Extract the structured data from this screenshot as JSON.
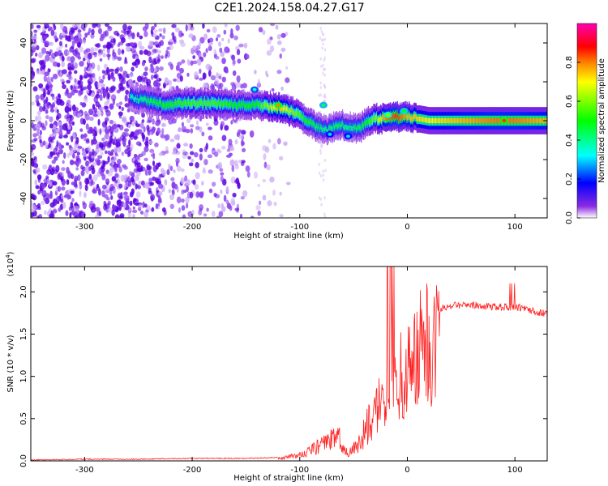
{
  "title": "C2E1.2024.158.04.27.G17",
  "chart_data": [
    {
      "type": "heatmap",
      "xlabel": "Height of straight line (km)",
      "ylabel": "Frequency (Hz)",
      "xlim": [
        -350,
        130
      ],
      "ylim": [
        -50,
        50
      ],
      "x_ticks": [
        -300,
        -200,
        -100,
        0,
        100
      ],
      "y_ticks": [
        -40,
        -20,
        0,
        20,
        40
      ],
      "colorbar": {
        "label": "Normalized spectral amplitude",
        "range": [
          0,
          1
        ],
        "ticks": [
          0.0,
          0.2,
          0.4,
          0.6,
          0.8
        ],
        "colormap": [
          "#ffffff",
          "#6a00ff",
          "#0000ff",
          "#00ffff",
          "#00ff00",
          "#ffff00",
          "#ff8000",
          "#ff0000",
          "#ff00b0"
        ]
      },
      "ridge": {
        "x": [
          -258,
          -240,
          -225,
          -200,
          -180,
          -160,
          -140,
          -120,
          -105,
          -95,
          -85,
          -75,
          -65,
          -55,
          -45,
          -38,
          -30,
          -20,
          -10,
          0,
          20,
          50,
          80,
          100,
          130
        ],
        "freq": [
          12,
          10,
          8,
          9,
          9,
          8,
          8,
          7,
          4,
          0,
          -3,
          -5,
          -2,
          -3,
          -4,
          -1,
          1,
          1,
          2,
          2,
          0,
          0,
          0,
          0,
          0
        ],
        "amplitude": [
          0.35,
          0.45,
          0.5,
          0.55,
          0.55,
          0.5,
          0.5,
          0.75,
          0.6,
          0.5,
          0.45,
          0.4,
          0.45,
          0.4,
          0.45,
          0.5,
          0.6,
          0.8,
          0.85,
          0.75,
          0.7,
          0.75,
          0.8,
          0.8,
          0.75
        ]
      }
    },
    {
      "type": "line",
      "xlabel": "Height of straight line (km)",
      "ylabel": "SNR (10 * v/v)",
      "y_scale_label": "(x10",
      "y_scale_exp": "4",
      "xlim": [
        -350,
        130
      ],
      "ylim": [
        0,
        2.3
      ],
      "x_ticks": [
        -300,
        -200,
        -100,
        0,
        100
      ],
      "y_ticks": [
        0.0,
        0.5,
        1.0,
        1.5,
        2.0
      ],
      "series": [
        {
          "color": "#ff2020",
          "envelope_x": [
            -350,
            -300,
            -250,
            -200,
            -150,
            -120,
            -100,
            -80,
            -65,
            -55,
            -45,
            -35,
            -25,
            -15,
            -5,
            5,
            15,
            25,
            35,
            45,
            60,
            75,
            90,
            100,
            110,
            120,
            130
          ],
          "envelope_y": [
            0.01,
            0.02,
            0.02,
            0.03,
            0.03,
            0.04,
            0.08,
            0.22,
            0.35,
            0.1,
            0.25,
            0.55,
            0.8,
            1.0,
            1.2,
            1.45,
            1.62,
            1.75,
            1.82,
            1.85,
            1.84,
            1.83,
            1.82,
            1.82,
            1.8,
            1.77,
            1.73
          ]
        }
      ]
    }
  ]
}
